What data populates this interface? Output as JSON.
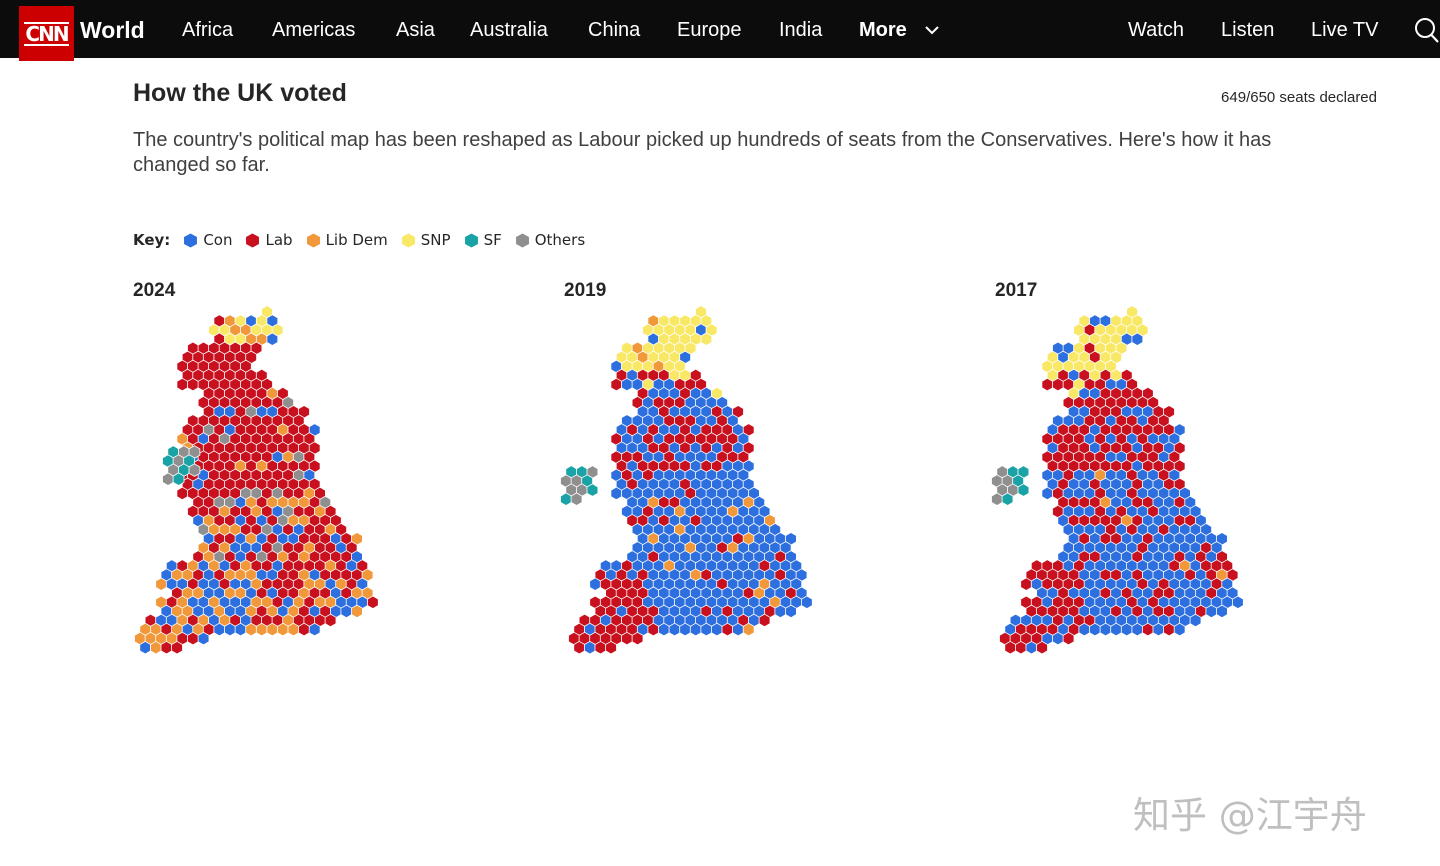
{
  "nav": {
    "logo": "CNN",
    "section": "World",
    "items": [
      "Africa",
      "Americas",
      "Asia",
      "Australia",
      "China",
      "Europe",
      "India",
      "More"
    ],
    "right_items": [
      "Watch",
      "Listen",
      "Live TV"
    ],
    "icons": [
      "chevron-down-icon",
      "search-icon"
    ]
  },
  "article": {
    "title": "How the UK voted",
    "seats_declared": "649/650 seats declared",
    "description": "The country's political map has been reshaped as Labour picked up hundreds of seats from the Conservatives. Here's how it has changed so far."
  },
  "key": {
    "label": "Key:",
    "parties": [
      {
        "name": "Con",
        "color": "#2e6fe0"
      },
      {
        "name": "Lab",
        "color": "#c8101e"
      },
      {
        "name": "Lib Dem",
        "color": "#f0983a"
      },
      {
        "name": "SNP",
        "color": "#f9e865"
      },
      {
        "name": "SF",
        "color": "#1aa3a6"
      },
      {
        "name": "Others",
        "color": "#8f8f8f"
      }
    ]
  },
  "maps": [
    {
      "year": "2024"
    },
    {
      "year": "2019"
    },
    {
      "year": "2017"
    }
  ],
  "watermark": "知乎 @江宇舟"
}
